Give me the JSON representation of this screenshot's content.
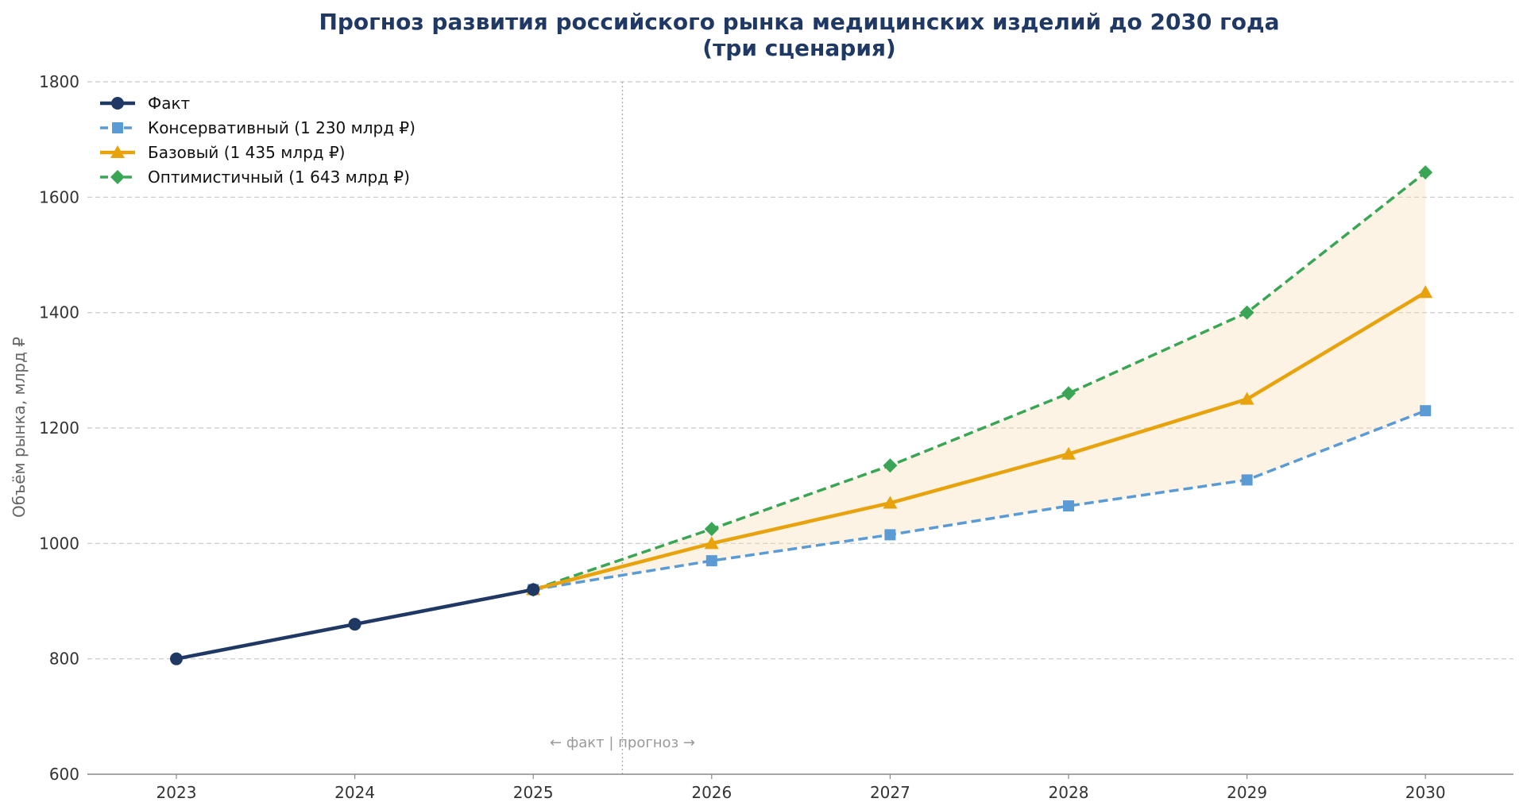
{
  "chart_data": {
    "type": "line",
    "title_line1": "Прогноз развития российского рынка медицинских изделий до 2030 года",
    "title_line2": "(три сценария)",
    "xlabel": "",
    "ylabel": "Объём рынка, млрд ₽",
    "ylim": [
      600,
      1800
    ],
    "yticks": [
      600,
      800,
      1000,
      1200,
      1400,
      1600,
      1800
    ],
    "categories": [
      "2023",
      "2024",
      "2025",
      "2026",
      "2027",
      "2028",
      "2029",
      "2030"
    ],
    "grid": true,
    "legend_position": "top-left",
    "annotation": "← факт  |  прогноз →",
    "divider_between": [
      "2025",
      "2026"
    ],
    "band": {
      "from_series": "Консервативный (1 230 млрд ₽)",
      "to_series": "Оптимистичный (1 643 млрд ₽)",
      "color": "#f5deb3"
    },
    "series": [
      {
        "name": "Факт",
        "color": "#1f3864",
        "marker": "circle",
        "dash": "solid",
        "x": [
          "2023",
          "2024",
          "2025"
        ],
        "values": [
          800,
          860,
          920
        ]
      },
      {
        "name": "Консервативный (1 230 млрд ₽)",
        "color": "#5b9bd5",
        "marker": "square",
        "dash": "dashed",
        "x": [
          "2025",
          "2026",
          "2027",
          "2028",
          "2029",
          "2030"
        ],
        "values": [
          920,
          970,
          1015,
          1065,
          1110,
          1230
        ]
      },
      {
        "name": "Базовый (1 435 млрд ₽)",
        "color": "#e8a20c",
        "marker": "triangle",
        "dash": "solid",
        "x": [
          "2025",
          "2026",
          "2027",
          "2028",
          "2029",
          "2030"
        ],
        "values": [
          920,
          1000,
          1070,
          1155,
          1250,
          1435
        ]
      },
      {
        "name": "Оптимистичный (1 643 млрд ₽)",
        "color": "#3aa655",
        "marker": "diamond",
        "dash": "dashed",
        "x": [
          "2025",
          "2026",
          "2027",
          "2028",
          "2029",
          "2030"
        ],
        "values": [
          920,
          1025,
          1135,
          1260,
          1400,
          1643
        ]
      }
    ]
  }
}
